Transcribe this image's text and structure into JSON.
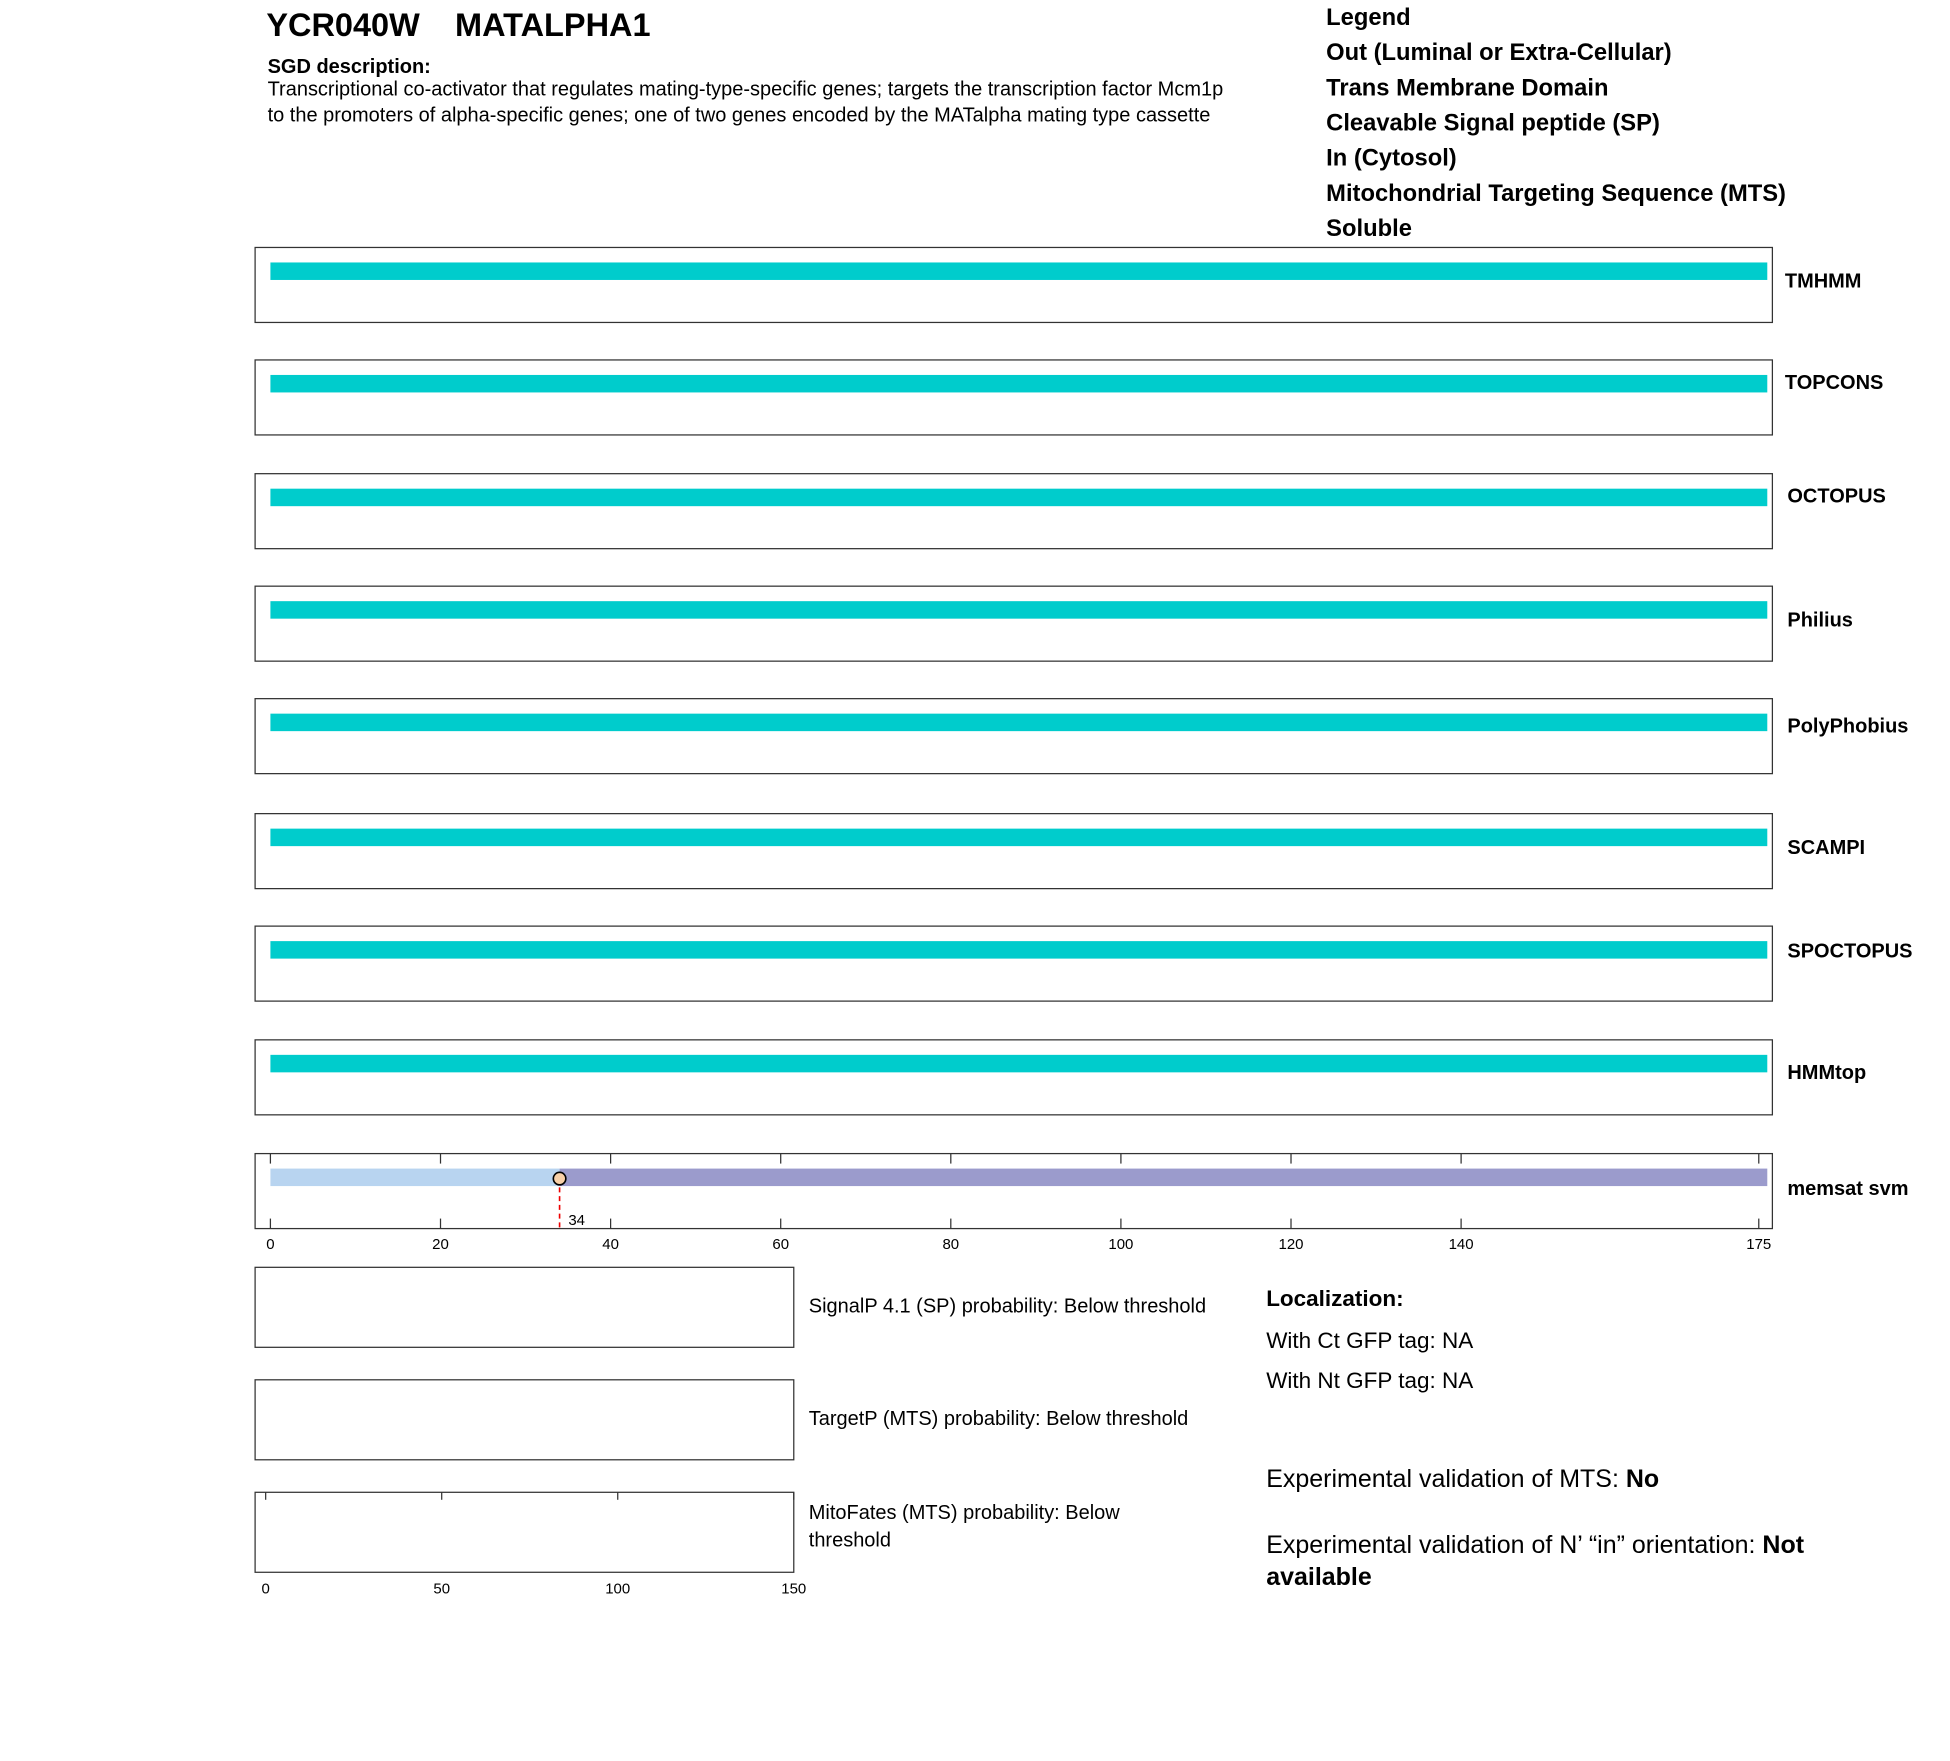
{
  "header": {
    "gene": "YCR040W",
    "name": "MATALPHA1",
    "description_label": "SGD description:",
    "description": [
      "Transcriptional co-activator that regulates mating-type-specific genes; targets the transcription factor Mcm1p",
      "to the promoters of alpha-specific genes; one of two genes encoded by the MATalpha mating type cassette"
    ]
  },
  "legend": {
    "title": "Legend",
    "items": [
      {
        "label": "Out (Luminal or Extra-Cellular)",
        "color": "#9b9bcc"
      },
      {
        "label": "Trans Membrane Domain",
        "color": "#8bd0a0"
      },
      {
        "label": "Cleavable Signal peptide (SP)",
        "color": "#b8d4f0"
      },
      {
        "label": "In (Cytosol)",
        "color": "#e8a8a8"
      },
      {
        "label": "Mitochondrial Targeting Sequence (MTS)",
        "color": "#e8a820"
      },
      {
        "label": "Soluble",
        "color": "#00cccc"
      }
    ]
  },
  "tracks": {
    "xlim": [
      -1.8,
      176.6
    ],
    "xticks": [
      0,
      20,
      40,
      60,
      80,
      100,
      120,
      140,
      175
    ],
    "items": [
      {
        "name": "TMHMM",
        "segments": [
          {
            "start": 0,
            "end": 176,
            "color": "#00cccc"
          }
        ]
      },
      {
        "name": "TOPCONS",
        "segments": [
          {
            "start": 0,
            "end": 176,
            "color": "#00cccc"
          }
        ]
      },
      {
        "name": "OCTOPUS",
        "segments": [
          {
            "start": 0,
            "end": 176,
            "color": "#00cccc"
          }
        ]
      },
      {
        "name": "Philius",
        "segments": [
          {
            "start": 0,
            "end": 176,
            "color": "#00cccc"
          }
        ]
      },
      {
        "name": "PolyPhobius",
        "segments": [
          {
            "start": 0,
            "end": 176,
            "color": "#00cccc"
          }
        ]
      },
      {
        "name": "SCAMPI",
        "segments": [
          {
            "start": 0,
            "end": 176,
            "color": "#00cccc"
          }
        ]
      },
      {
        "name": "SPOCTOPUS",
        "segments": [
          {
            "start": 0,
            "end": 176,
            "color": "#00cccc"
          }
        ]
      },
      {
        "name": "HMMtop",
        "segments": [
          {
            "start": 0,
            "end": 176,
            "color": "#00cccc"
          }
        ]
      },
      {
        "name": "memsat svm",
        "segments": [
          {
            "start": 0,
            "end": 34,
            "color": "#b8d4f0"
          },
          {
            "start": 34,
            "end": 176,
            "color": "#9b9bcc"
          }
        ],
        "cleavage": 34
      }
    ]
  },
  "probabilities": {
    "xlim": [
      -3,
      150
    ],
    "xticks": [
      0,
      50,
      100,
      150
    ],
    "items": [
      {
        "label": [
          "SignalP 4.1 (SP) probability: Below threshold"
        ]
      },
      {
        "label": [
          "TargetP (MTS) probability: Below threshold"
        ]
      },
      {
        "label": [
          "MitoFates (MTS) probability: Below",
          "threshold"
        ]
      }
    ]
  },
  "localization": {
    "title": "Localization:",
    "ct": "With Ct GFP tag: NA",
    "nt": "With Nt GFP tag: NA",
    "mts_label": "Experimental validation of MTS: ",
    "mts_value": "No",
    "orientation_label": "Experimental validation of N’ “in” orientation: ",
    "orientation_value": [
      "Not",
      "available"
    ]
  }
}
